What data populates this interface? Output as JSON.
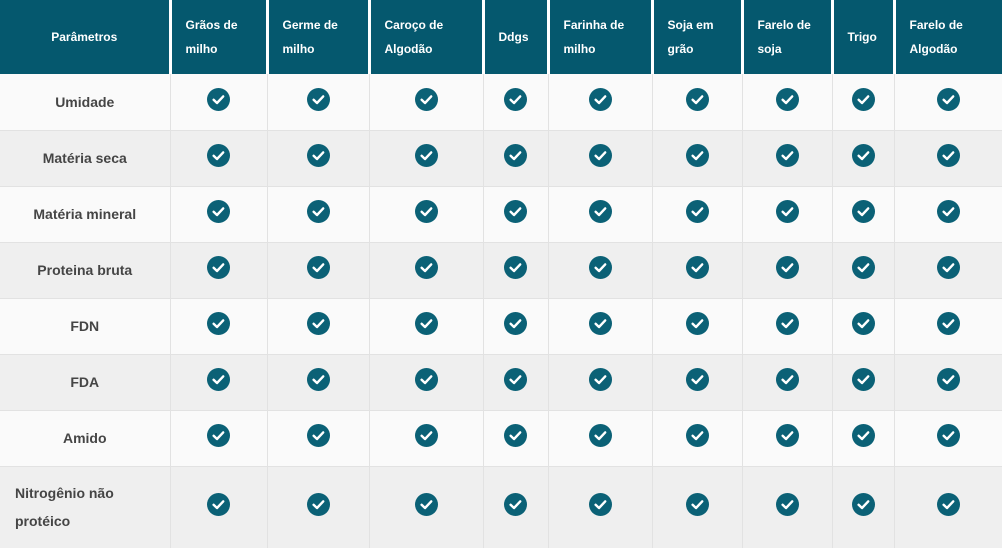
{
  "table": {
    "corner_header": "Parâmetros",
    "columns": [
      "Grãos de milho",
      "Germe de milho",
      "Caroço de Algodão",
      "Ddgs",
      "Farinha de milho",
      "Soja em grão",
      "Farelo de soja",
      "Trigo",
      "Farelo de Algodão"
    ],
    "rows": [
      {
        "label": "Umidade",
        "checks": [
          true,
          true,
          true,
          true,
          true,
          true,
          true,
          true,
          true
        ]
      },
      {
        "label": "Matéria seca",
        "checks": [
          true,
          true,
          true,
          true,
          true,
          true,
          true,
          true,
          true
        ]
      },
      {
        "label": "Matéria mineral",
        "checks": [
          true,
          true,
          true,
          true,
          true,
          true,
          true,
          true,
          true
        ]
      },
      {
        "label": "Proteina bruta",
        "checks": [
          true,
          true,
          true,
          true,
          true,
          true,
          true,
          true,
          true
        ]
      },
      {
        "label": "FDN",
        "checks": [
          true,
          true,
          true,
          true,
          true,
          true,
          true,
          true,
          true
        ]
      },
      {
        "label": "FDA",
        "checks": [
          true,
          true,
          true,
          true,
          true,
          true,
          true,
          true,
          true
        ]
      },
      {
        "label": "Amido",
        "checks": [
          true,
          true,
          true,
          true,
          true,
          true,
          true,
          true,
          true
        ]
      },
      {
        "label": "Nitrogênio não protéico",
        "checks": [
          true,
          true,
          true,
          true,
          true,
          true,
          true,
          true,
          true
        ]
      }
    ],
    "icons": {
      "check": "check-circle-icon"
    },
    "colors": {
      "header_bg": "#05586e",
      "header_text": "#ffffff",
      "check_circle": "#0b6176",
      "row_odd_bg": "#fafafa",
      "row_even_bg": "#efefef",
      "label_text": "#454545",
      "grid_line": "#e2e2e2"
    }
  }
}
